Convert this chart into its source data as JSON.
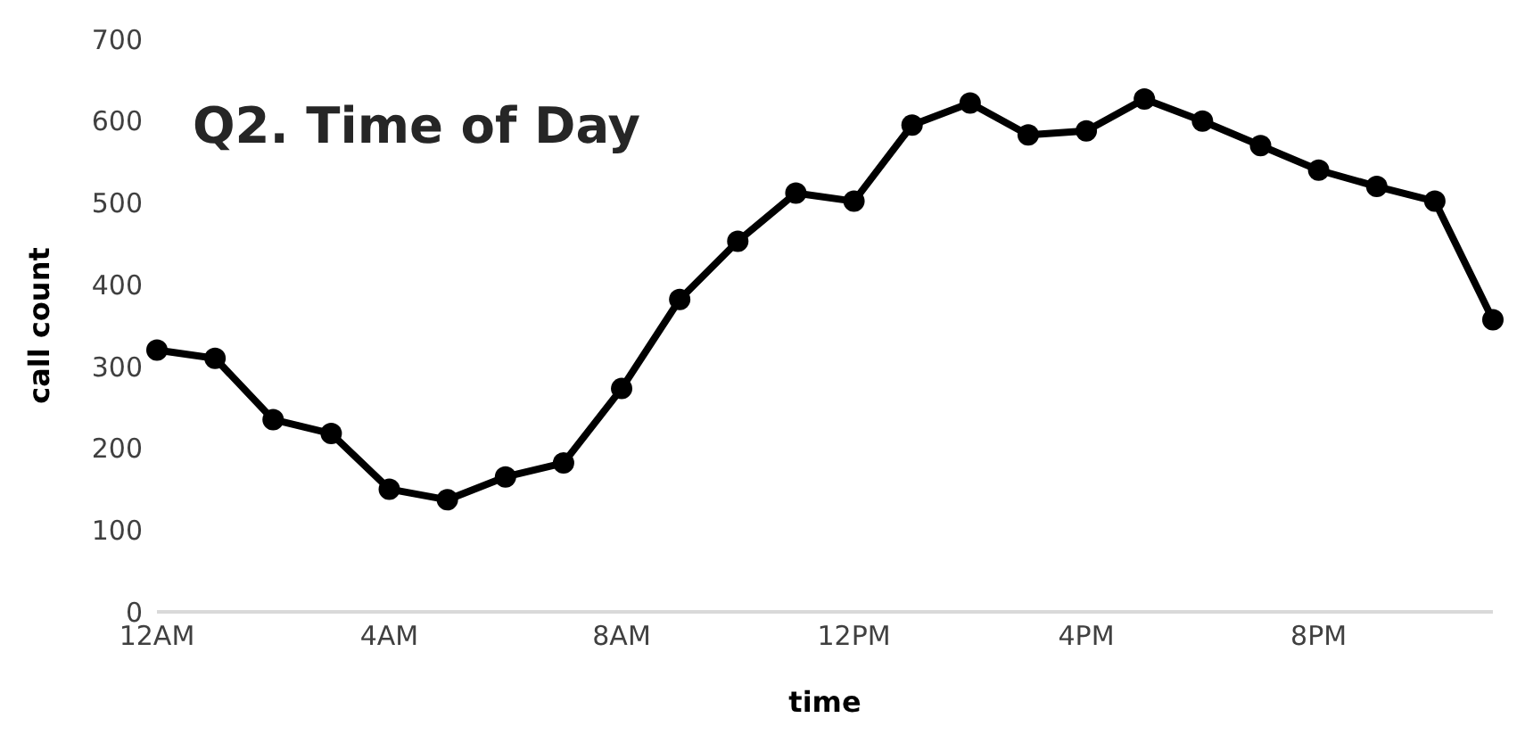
{
  "chart_data": {
    "type": "line",
    "title": "Q2. Time of Day",
    "xlabel": "time",
    "ylabel": "call count",
    "categories": [
      "12AM",
      null,
      null,
      null,
      "4AM",
      null,
      null,
      null,
      "8AM",
      null,
      null,
      null,
      "12PM",
      null,
      null,
      null,
      "4PM",
      null,
      null,
      null,
      "8PM",
      null,
      null,
      null
    ],
    "series": [
      {
        "color": "#000000",
        "values": [
          320,
          310,
          235,
          218,
          150,
          137,
          165,
          182,
          273,
          382,
          453,
          512,
          502,
          595,
          622,
          583,
          588,
          627,
          600,
          570,
          540,
          520,
          502,
          357
        ]
      }
    ],
    "ylim": [
      0,
      700
    ],
    "yticks": [
      0,
      100,
      200,
      300,
      400,
      500,
      600,
      700
    ],
    "grid": false,
    "legend": false,
    "marker": "circle",
    "line_style": "solid"
  }
}
